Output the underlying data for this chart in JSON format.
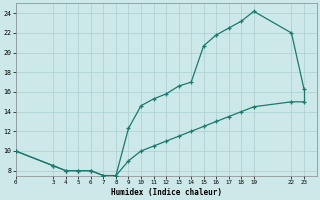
{
  "xlabel": "Humidex (Indice chaleur)",
  "bg_color": "#cce8e8",
  "grid_color": "#aacfcf",
  "line_color": "#1a7a6e",
  "xlim": [
    0,
    24
  ],
  "ylim": [
    7.5,
    25
  ],
  "xticks": [
    0,
    3,
    4,
    5,
    6,
    7,
    8,
    9,
    10,
    11,
    12,
    13,
    14,
    15,
    16,
    17,
    18,
    19,
    22,
    23
  ],
  "yticks": [
    8,
    10,
    12,
    14,
    16,
    18,
    20,
    22,
    24
  ],
  "upper_x": [
    0,
    3,
    4,
    5,
    6,
    7,
    8,
    9,
    10,
    11,
    12,
    13,
    14,
    15,
    16,
    17,
    18,
    19,
    22,
    23
  ],
  "upper_y": [
    10,
    8.5,
    8,
    8,
    8,
    7.5,
    7.5,
    12.3,
    14.6,
    15.3,
    15.8,
    16.6,
    17.0,
    20.7,
    21.8,
    22.5,
    23.2,
    24.2,
    22.0,
    16.3
  ],
  "lower_x": [
    0,
    3,
    4,
    5,
    6,
    7,
    8,
    9,
    10,
    11,
    12,
    13,
    14,
    15,
    16,
    17,
    18,
    19,
    22,
    23
  ],
  "lower_y": [
    10,
    8.5,
    8,
    8,
    8,
    7.5,
    7.5,
    9.0,
    10.0,
    10.5,
    11.0,
    11.5,
    12.0,
    12.5,
    13.0,
    13.5,
    14.0,
    14.5,
    15.0,
    15.0
  ]
}
